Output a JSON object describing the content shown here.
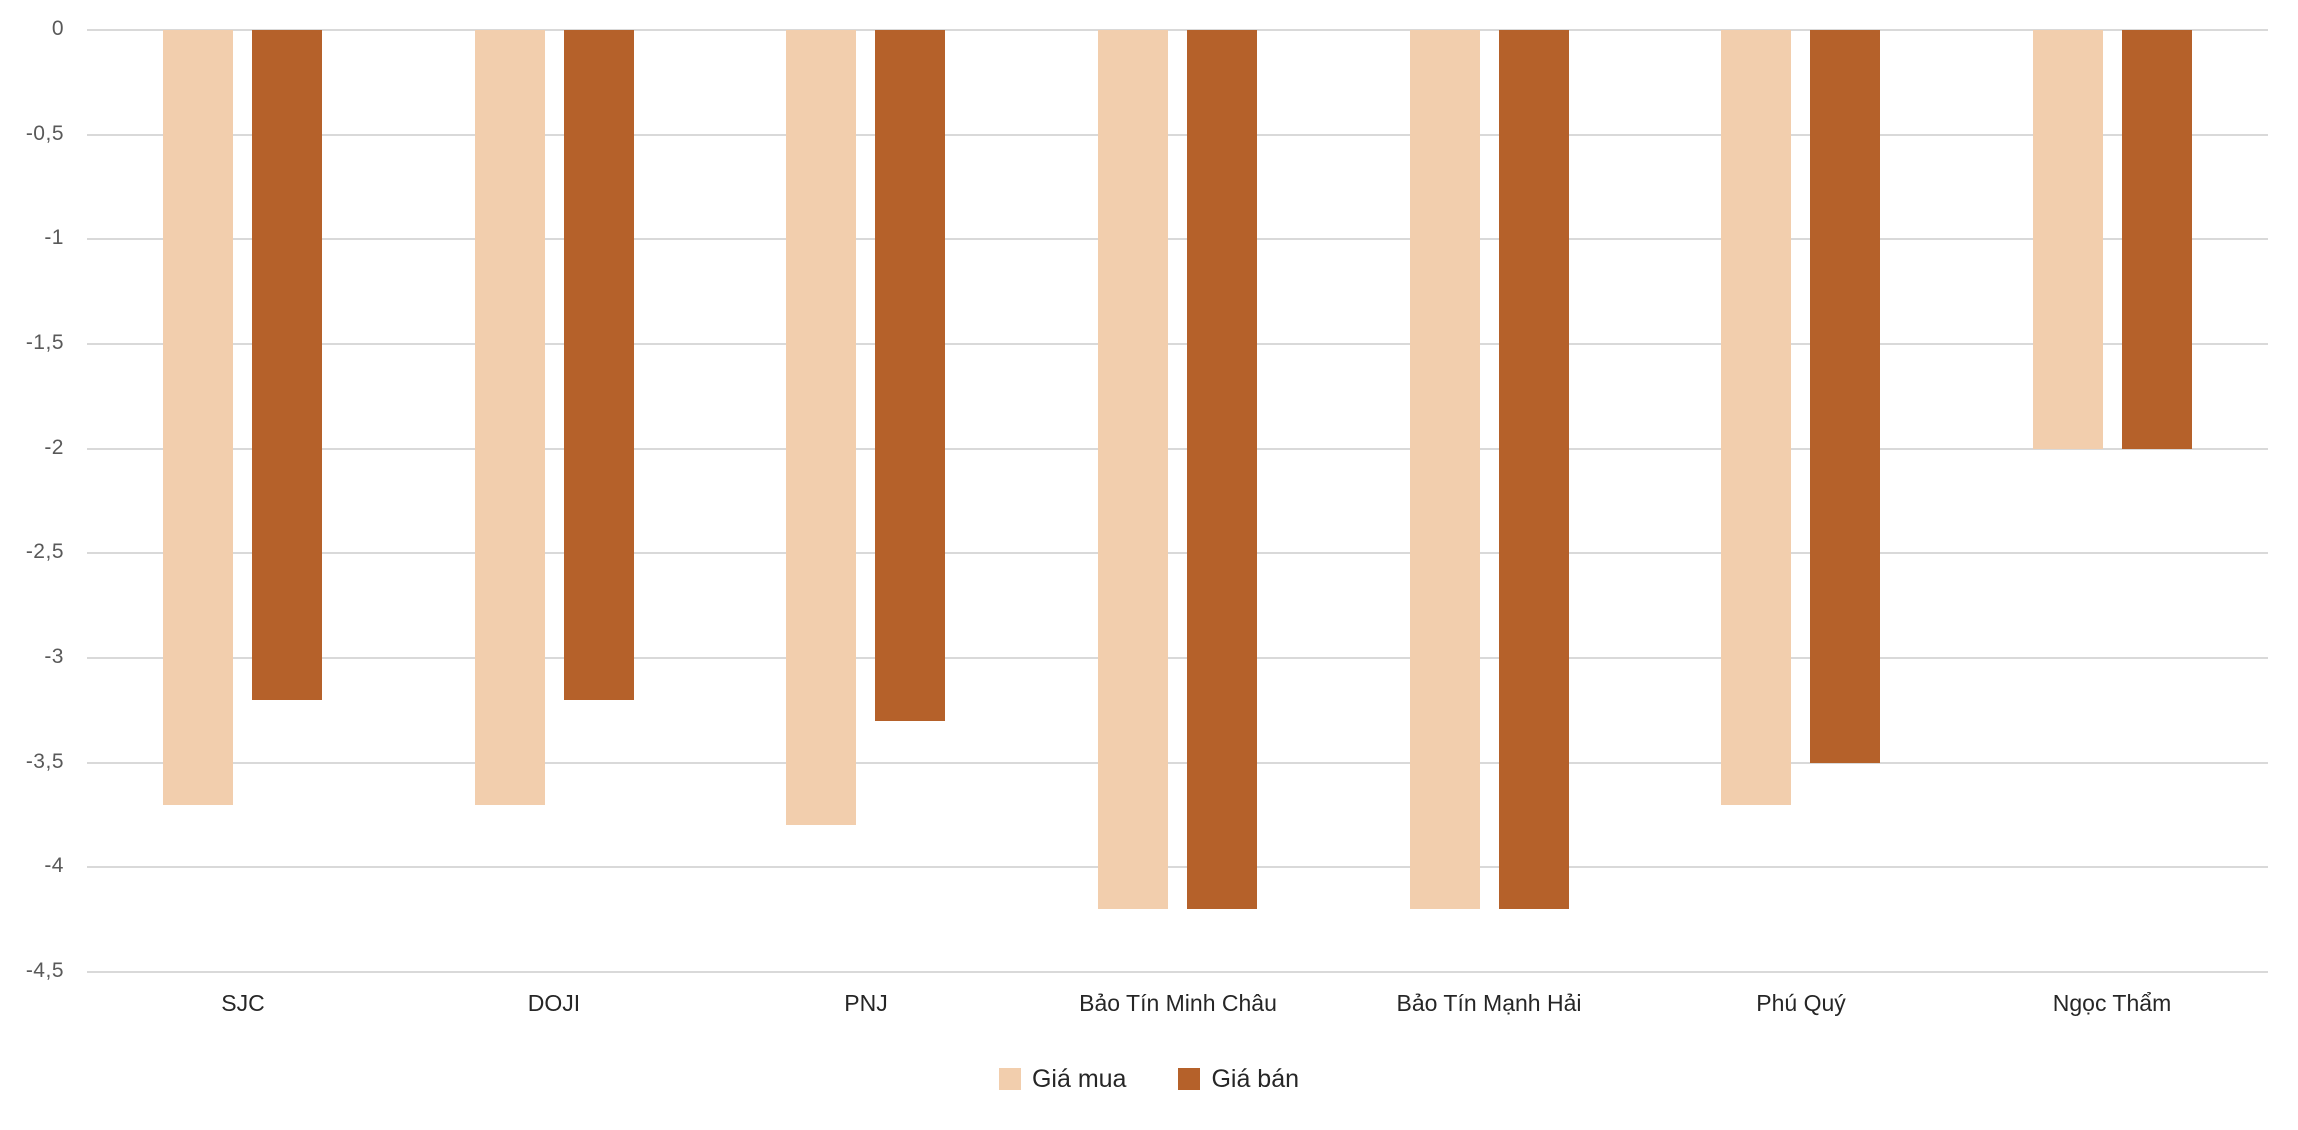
{
  "chart_data": {
    "type": "bar",
    "orientation": "vertical",
    "title": "",
    "xlabel": "",
    "ylabel": "",
    "categories": [
      "SJC",
      "DOJI",
      "PNJ",
      "Bảo Tín Minh Châu",
      "Bảo Tín Mạnh Hải",
      "Phú Quý",
      "Ngọc Thẩm"
    ],
    "series": [
      {
        "name": "Giá mua",
        "color": "#F2CEAD",
        "values": [
          -3.7,
          -3.7,
          -3.8,
          -4.2,
          -4.2,
          -3.7,
          -2.0
        ]
      },
      {
        "name": "Giá bán",
        "color": "#B5612A",
        "values": [
          -3.2,
          -3.2,
          -3.3,
          -4.2,
          -4.2,
          -3.5,
          -2.0
        ]
      }
    ],
    "ylim": [
      -4.5,
      0
    ],
    "y_tick_values": [
      0,
      -0.5,
      -1,
      -1.5,
      -2,
      -2.5,
      -3,
      -3.5,
      -4,
      -4.5
    ],
    "y_tick_labels": [
      "0",
      "-0,5",
      "-1",
      "-1,5",
      "-2",
      "-2,5",
      "-3",
      "-3,5",
      "-4",
      "-4,5"
    ],
    "grid": true,
    "legend_position": "bottom"
  },
  "colors": {
    "background": "#FFFFFF",
    "gridline": "#D9D9D9",
    "tick_label": "#595959",
    "category_label": "#262626",
    "series_gia_mua": "#F2CEAD",
    "series_gia_ban": "#B5612A"
  },
  "legend": {
    "items": [
      {
        "label": "Giá mua",
        "color": "#F2CEAD"
      },
      {
        "label": "Giá bán",
        "color": "#B5612A"
      }
    ]
  }
}
